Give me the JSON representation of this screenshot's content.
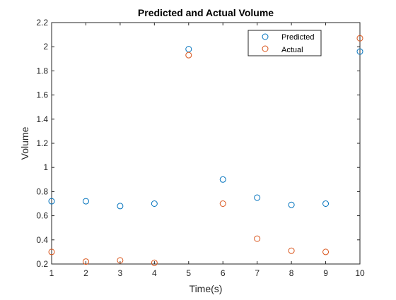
{
  "chart_data": {
    "type": "scatter",
    "title": "Predicted and Actual Volume",
    "xlabel": "Time(s)",
    "ylabel": "Volume",
    "xlim": [
      1,
      10
    ],
    "ylim": [
      0.2,
      2.2
    ],
    "xticks": [
      1,
      2,
      3,
      4,
      5,
      6,
      7,
      8,
      9,
      10
    ],
    "yticks": [
      0.2,
      0.4,
      0.6,
      0.8,
      1,
      1.2,
      1.4,
      1.6,
      1.8,
      2,
      2.2
    ],
    "grid": false,
    "legend_position": "top-right",
    "x": [
      1,
      2,
      3,
      4,
      5,
      6,
      7,
      8,
      9,
      10
    ],
    "series": [
      {
        "name": "Predicted",
        "color": "#0072bd",
        "marker": "circle-open",
        "values": [
          0.72,
          0.72,
          0.68,
          0.7,
          1.98,
          0.9,
          0.75,
          0.69,
          0.7,
          1.96
        ]
      },
      {
        "name": "Actual",
        "color": "#d95319",
        "marker": "circle-open",
        "values": [
          0.3,
          0.22,
          0.23,
          0.21,
          1.93,
          0.7,
          0.41,
          0.31,
          0.3,
          2.07
        ]
      }
    ]
  }
}
